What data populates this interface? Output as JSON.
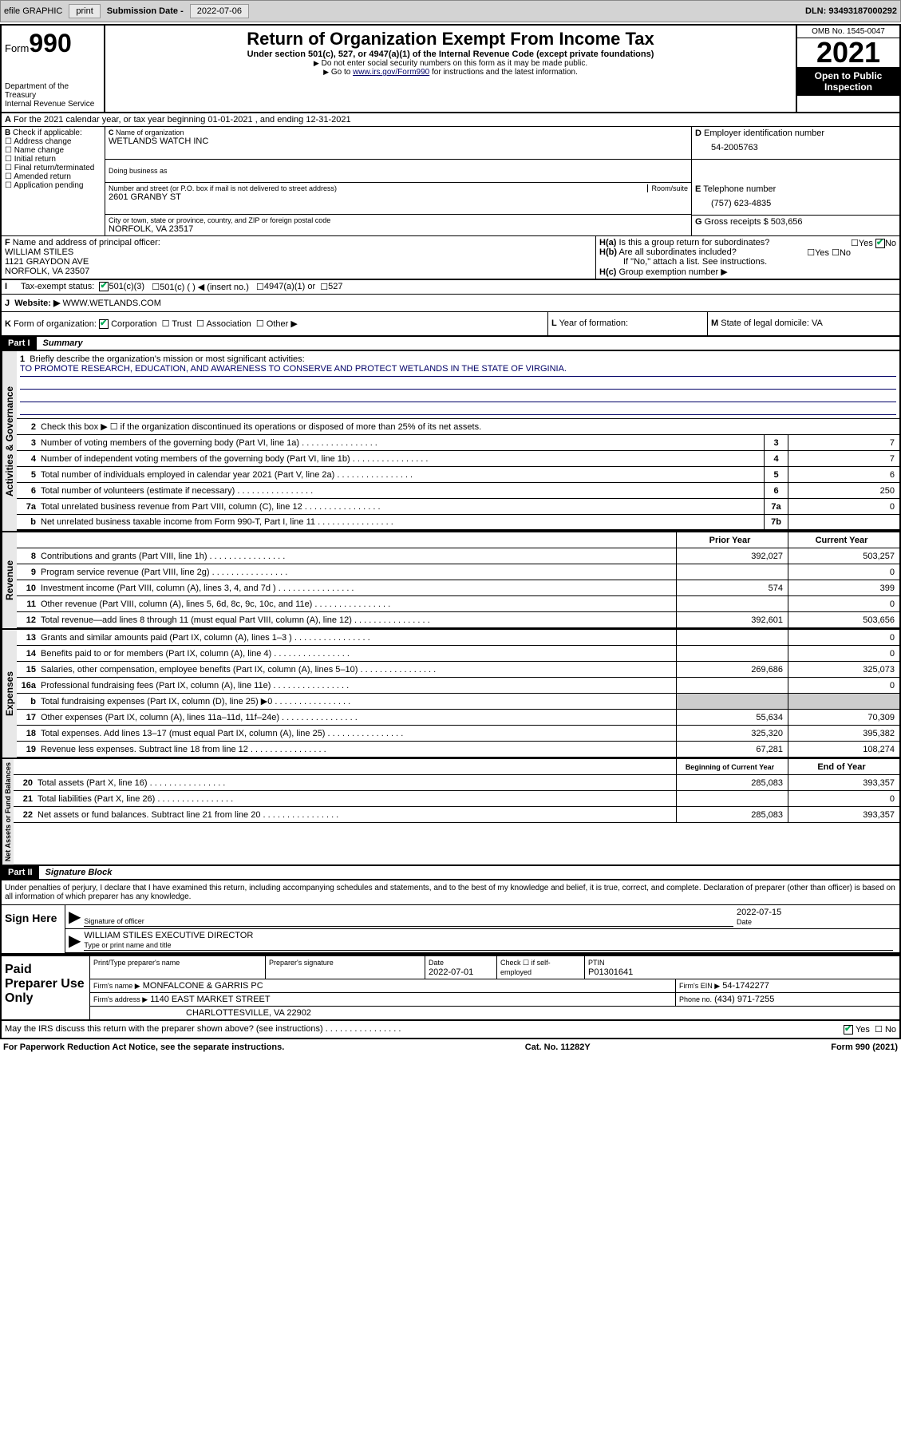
{
  "toolbar": {
    "efile": "efile GRAPHIC",
    "print": "print",
    "sub_label": "Submission Date -",
    "sub_date": "2022-07-06",
    "dln": "DLN: 93493187000292"
  },
  "header": {
    "form_word": "Form",
    "form_num": "990",
    "title": "Return of Organization Exempt From Income Tax",
    "subtitle": "Under section 501(c), 527, or 4947(a)(1) of the Internal Revenue Code (except private foundations)",
    "note1": "Do not enter social security numbers on this form as it may be made public.",
    "note2_pre": "Go to ",
    "note2_link": "www.irs.gov/Form990",
    "note2_post": " for instructions and the latest information.",
    "dept": "Department of the Treasury",
    "irs": "Internal Revenue Service",
    "omb": "OMB No. 1545-0047",
    "year": "2021",
    "inspection": "Open to Public Inspection"
  },
  "line_a": "For the 2021 calendar year, or tax year beginning 01-01-2021    , and ending 12-31-2021",
  "section_b": {
    "label": "Check if applicable:",
    "opts": [
      "Address change",
      "Name change",
      "Initial return",
      "Final return/terminated",
      "Amended return",
      "Application pending"
    ]
  },
  "section_c": {
    "label": "Name of organization",
    "name": "WETLANDS WATCH INC",
    "dba_label": "Doing business as",
    "addr_label": "Number and street (or P.O. box if mail is not delivered to street address)",
    "room_label": "Room/suite",
    "addr": "2601 GRANBY ST",
    "city_label": "City or town, state or province, country, and ZIP or foreign postal code",
    "city": "NORFOLK, VA  23517"
  },
  "section_d": {
    "label": "Employer identification number",
    "value": "54-2005763"
  },
  "section_e": {
    "label": "Telephone number",
    "value": "(757) 623-4835"
  },
  "section_g": {
    "label": "Gross receipts $",
    "value": "503,656"
  },
  "section_f": {
    "label": "Name and address of principal officer:",
    "name": "WILLIAM STILES",
    "addr": "1121 GRAYDON AVE",
    "city": "NORFOLK, VA  23507"
  },
  "section_h": {
    "ha": "Is this a group return for subordinates?",
    "hb": "Are all subordinates included?",
    "note": "If \"No,\" attach a list. See instructions.",
    "hc": "Group exemption number ▶",
    "yes": "Yes",
    "no": "No"
  },
  "section_i": {
    "label": "Tax-exempt status:",
    "opt1": "501(c)(3)",
    "opt2": "501(c) (  ) ◀ (insert no.)",
    "opt3": "4947(a)(1) or",
    "opt4": "527"
  },
  "section_j": {
    "label": "Website: ▶",
    "value": "WWW.WETLANDS.COM"
  },
  "section_k": {
    "label": "Form of organization:",
    "opts": [
      "Corporation",
      "Trust",
      "Association",
      "Other ▶"
    ]
  },
  "section_l": {
    "label": "Year of formation:",
    "value": ""
  },
  "section_m": {
    "label": "State of legal domicile:",
    "value": "VA"
  },
  "part1": {
    "num": "Part I",
    "title": "Summary"
  },
  "mission": {
    "label": "Briefly describe the organization's mission or most significant activities:",
    "text": "TO PROMOTE RESEARCH, EDUCATION, AND AWARENESS TO CONSERVE AND PROTECT WETLANDS IN THE STATE OF VIRGINIA."
  },
  "line2": "Check this box ▶ ☐ if the organization discontinued its operations or disposed of more than 25% of its net assets.",
  "gov_rows": [
    {
      "n": "3",
      "t": "Number of voting members of the governing body (Part VI, line 1a)",
      "b": "3",
      "v": "7"
    },
    {
      "n": "4",
      "t": "Number of independent voting members of the governing body (Part VI, line 1b)",
      "b": "4",
      "v": "7"
    },
    {
      "n": "5",
      "t": "Total number of individuals employed in calendar year 2021 (Part V, line 2a)",
      "b": "5",
      "v": "6"
    },
    {
      "n": "6",
      "t": "Total number of volunteers (estimate if necessary)",
      "b": "6",
      "v": "250"
    },
    {
      "n": "7a",
      "t": "Total unrelated business revenue from Part VIII, column (C), line 12",
      "b": "7a",
      "v": "0"
    },
    {
      "n": "b",
      "t": "Net unrelated business taxable income from Form 990-T, Part I, line 11",
      "b": "7b",
      "v": ""
    }
  ],
  "col_headers": {
    "prior": "Prior Year",
    "current": "Current Year",
    "boy": "Beginning of Current Year",
    "eoy": "End of Year"
  },
  "rev_rows": [
    {
      "n": "8",
      "t": "Contributions and grants (Part VIII, line 1h)",
      "p": "392,027",
      "c": "503,257"
    },
    {
      "n": "9",
      "t": "Program service revenue (Part VIII, line 2g)",
      "p": "",
      "c": "0"
    },
    {
      "n": "10",
      "t": "Investment income (Part VIII, column (A), lines 3, 4, and 7d )",
      "p": "574",
      "c": "399"
    },
    {
      "n": "11",
      "t": "Other revenue (Part VIII, column (A), lines 5, 6d, 8c, 9c, 10c, and 11e)",
      "p": "",
      "c": "0"
    },
    {
      "n": "12",
      "t": "Total revenue—add lines 8 through 11 (must equal Part VIII, column (A), line 12)",
      "p": "392,601",
      "c": "503,656"
    }
  ],
  "exp_rows": [
    {
      "n": "13",
      "t": "Grants and similar amounts paid (Part IX, column (A), lines 1–3 )",
      "p": "",
      "c": "0"
    },
    {
      "n": "14",
      "t": "Benefits paid to or for members (Part IX, column (A), line 4)",
      "p": "",
      "c": "0"
    },
    {
      "n": "15",
      "t": "Salaries, other compensation, employee benefits (Part IX, column (A), lines 5–10)",
      "p": "269,686",
      "c": "325,073"
    },
    {
      "n": "16a",
      "t": "Professional fundraising fees (Part IX, column (A), line 11e)",
      "p": "",
      "c": "0"
    },
    {
      "n": "b",
      "t": "Total fundraising expenses (Part IX, column (D), line 25) ▶0",
      "p": "shaded",
      "c": "shaded"
    },
    {
      "n": "17",
      "t": "Other expenses (Part IX, column (A), lines 11a–11d, 11f–24e)",
      "p": "55,634",
      "c": "70,309"
    },
    {
      "n": "18",
      "t": "Total expenses. Add lines 13–17 (must equal Part IX, column (A), line 25)",
      "p": "325,320",
      "c": "395,382"
    },
    {
      "n": "19",
      "t": "Revenue less expenses. Subtract line 18 from line 12",
      "p": "67,281",
      "c": "108,274"
    }
  ],
  "net_rows": [
    {
      "n": "20",
      "t": "Total assets (Part X, line 16)",
      "p": "285,083",
      "c": "393,357"
    },
    {
      "n": "21",
      "t": "Total liabilities (Part X, line 26)",
      "p": "",
      "c": "0"
    },
    {
      "n": "22",
      "t": "Net assets or fund balances. Subtract line 21 from line 20",
      "p": "285,083",
      "c": "393,357"
    }
  ],
  "side_labels": {
    "gov": "Activities & Governance",
    "rev": "Revenue",
    "exp": "Expenses",
    "net": "Net Assets or Fund Balances"
  },
  "part2": {
    "num": "Part II",
    "title": "Signature Block"
  },
  "sig": {
    "disclaimer": "Under penalties of perjury, I declare that I have examined this return, including accompanying schedules and statements, and to the best of my knowledge and belief, it is true, correct, and complete. Declaration of preparer (other than officer) is based on all information of which preparer has any knowledge.",
    "sign_here": "Sign Here",
    "sig_officer": "Signature of officer",
    "date_label": "Date",
    "date": "2022-07-15",
    "name_title": "WILLIAM STILES  EXECUTIVE DIRECTOR",
    "name_label": "Type or print name and title"
  },
  "preparer": {
    "title": "Paid Preparer Use Only",
    "h1": "Print/Type preparer's name",
    "h2": "Preparer's signature",
    "h3": "Date",
    "h4": "Check ☐ if self-employed",
    "h5": "PTIN",
    "date": "2022-07-01",
    "ptin": "P01301641",
    "firm_label": "Firm's name    ▶",
    "firm": "MONFALCONE & GARRIS PC",
    "ein_label": "Firm's EIN ▶",
    "ein": "54-1742277",
    "addr_label": "Firm's address ▶",
    "addr": "1140 EAST MARKET STREET",
    "city": "CHARLOTTESVILLE, VA  22902",
    "phone_label": "Phone no.",
    "phone": "(434) 971-7255"
  },
  "footer": {
    "discuss": "May the IRS discuss this return with the preparer shown above? (see instructions)",
    "yes": "Yes",
    "no": "No",
    "paperwork": "For Paperwork Reduction Act Notice, see the separate instructions.",
    "cat": "Cat. No. 11282Y",
    "form": "Form 990 (2021)"
  }
}
